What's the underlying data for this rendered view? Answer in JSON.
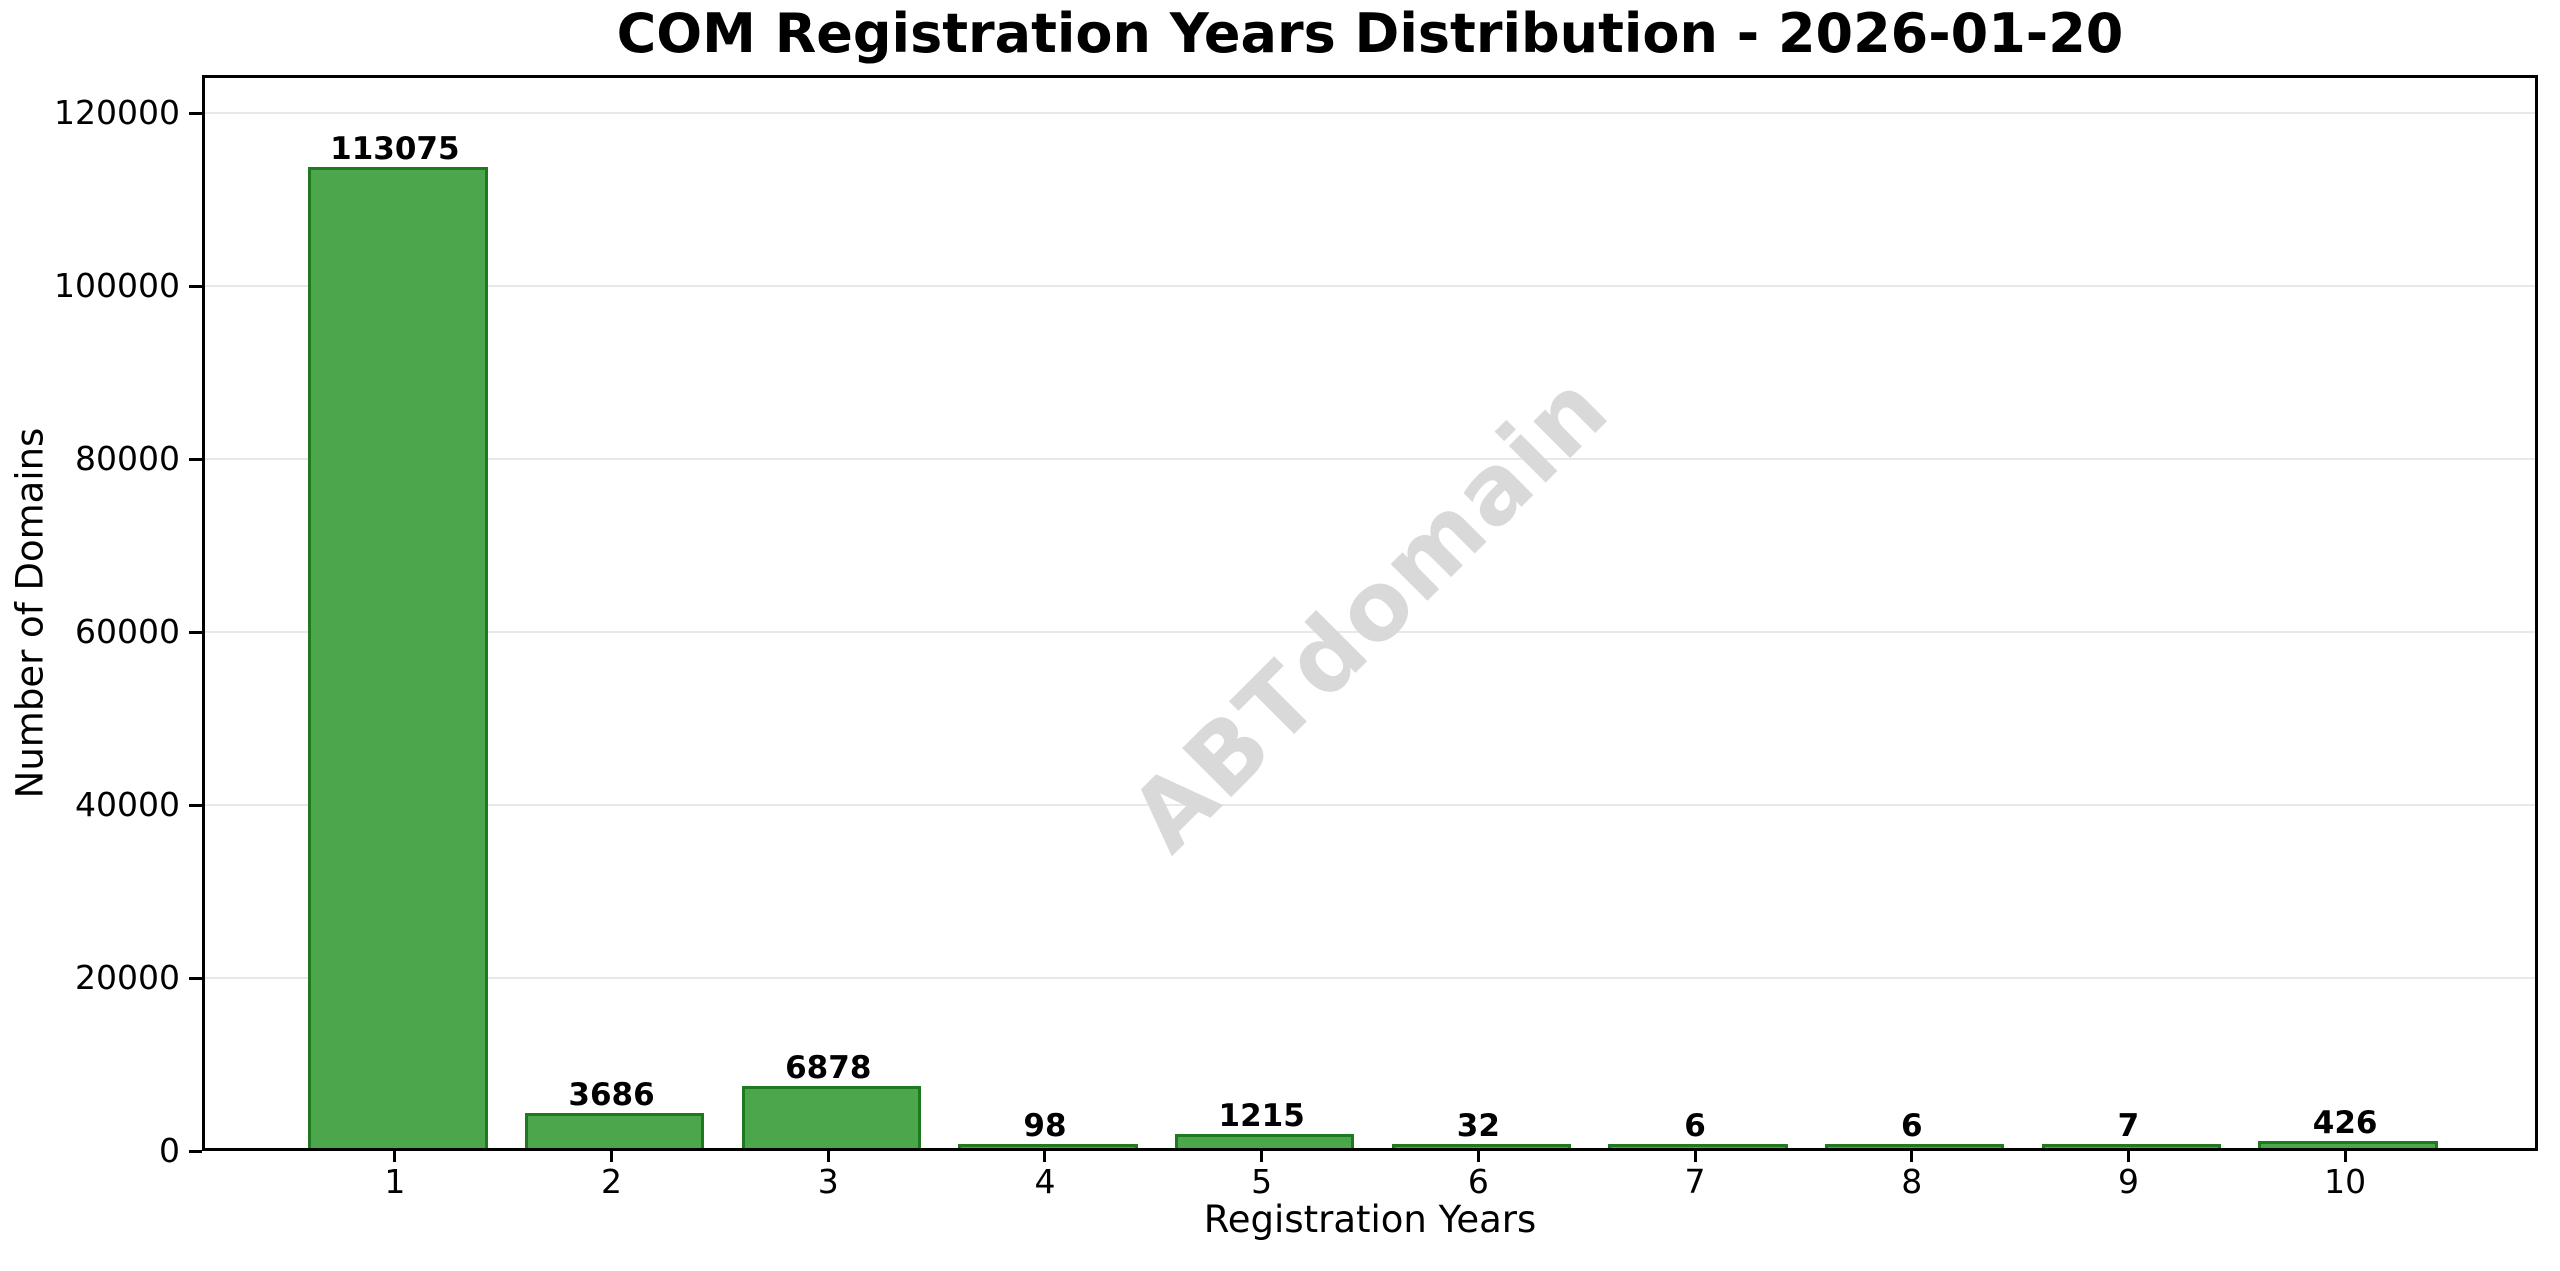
{
  "chart_data": {
    "type": "bar",
    "title": "COM Registration Years Distribution - 2026-01-20",
    "xlabel": "Registration Years",
    "ylabel": "Number of Domains",
    "watermark": "ABTdomain",
    "categories": [
      1,
      2,
      3,
      4,
      5,
      6,
      7,
      8,
      9,
      10
    ],
    "values": [
      113075,
      3686,
      6878,
      98,
      1215,
      32,
      6,
      6,
      7,
      426
    ],
    "yticks": [
      0,
      20000,
      40000,
      60000,
      80000,
      100000,
      120000
    ],
    "ylim": [
      0,
      124400
    ],
    "xlim": [
      0.11,
      10.89
    ],
    "bar_width": 0.8,
    "grid": true,
    "legend": false,
    "value_labels_shown": true,
    "colors": {
      "bar_fill": "#4CA64C",
      "bar_edge": "#1F7A1F",
      "gridline": "#E8E8E8",
      "watermark": "#D9D9D9",
      "text": "#000000",
      "background": "#FFFFFF"
    }
  }
}
